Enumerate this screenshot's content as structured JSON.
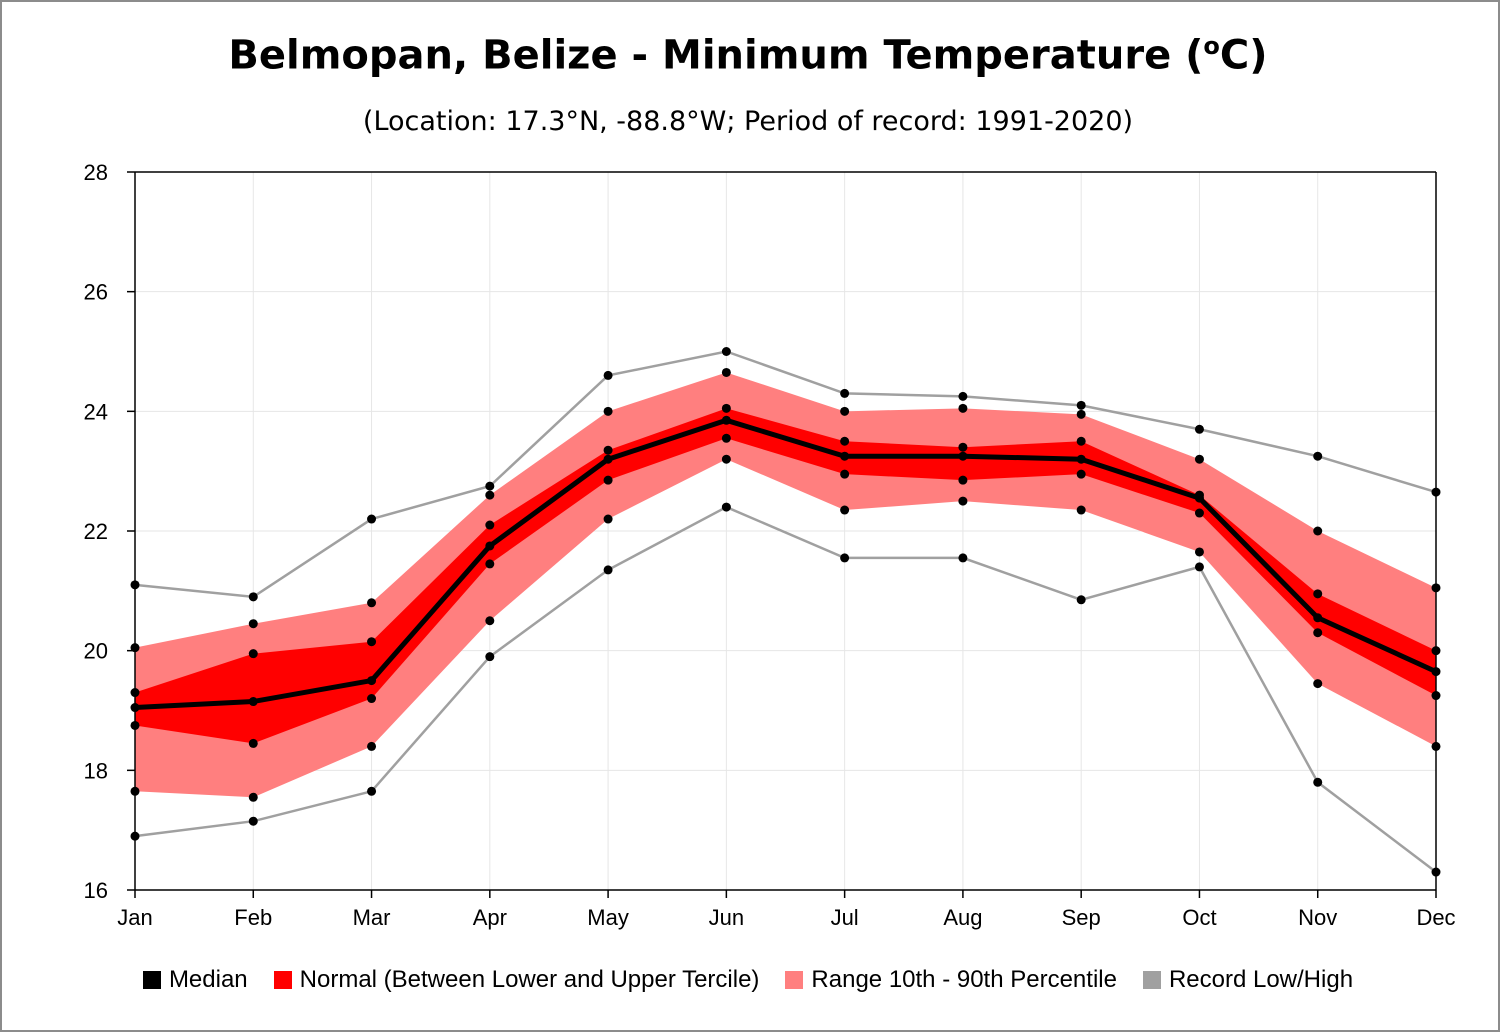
{
  "chart_data": {
    "type": "area",
    "title": "Belmopan, Belize - Minimum Temperature (",
    "title_unit_sup": "o",
    "title_unit_end": "C)",
    "subtitle": "(Location: 17.3°N, -88.8°W; Period of record: 1991-2020)",
    "categories": [
      "Jan",
      "Feb",
      "Mar",
      "Apr",
      "May",
      "Jun",
      "Jul",
      "Aug",
      "Sep",
      "Oct",
      "Nov",
      "Dec"
    ],
    "yticks": [
      "16",
      "18",
      "20",
      "22",
      "24",
      "26",
      "28"
    ],
    "ylim": [
      16,
      28
    ],
    "grid": true,
    "legend_position": "bottom",
    "colors": {
      "median": "#000000",
      "normal": "#ff0000",
      "range": "#ff7f7f",
      "record": "#a0a0a0"
    },
    "series": [
      {
        "name": "Median",
        "values": [
          19.05,
          19.15,
          19.5,
          21.75,
          23.2,
          23.85,
          23.25,
          23.25,
          23.2,
          22.55,
          20.55,
          19.65
        ]
      },
      {
        "name": "Normal (Between Lower and Upper Tercile)",
        "lower": [
          18.75,
          18.45,
          19.2,
          21.45,
          22.85,
          23.55,
          22.95,
          22.85,
          22.95,
          22.3,
          20.3,
          19.25
        ],
        "upper": [
          19.3,
          19.95,
          20.15,
          22.1,
          23.35,
          24.05,
          23.5,
          23.4,
          23.5,
          22.6,
          20.95,
          20.0
        ]
      },
      {
        "name": "Range 10th - 90th Percentile",
        "lower": [
          17.65,
          17.55,
          18.4,
          20.5,
          22.2,
          23.2,
          22.35,
          22.5,
          22.35,
          21.65,
          19.45,
          18.4
        ],
        "upper": [
          20.05,
          20.45,
          20.8,
          22.6,
          24.0,
          24.65,
          24.0,
          24.05,
          23.95,
          23.2,
          22.0,
          21.05
        ]
      },
      {
        "name": "Record Low/High",
        "lower": [
          16.9,
          17.15,
          17.65,
          19.9,
          21.35,
          22.4,
          21.55,
          21.55,
          20.85,
          21.4,
          17.8,
          16.3
        ],
        "upper": [
          21.1,
          20.9,
          22.2,
          22.75,
          24.6,
          25.0,
          24.3,
          24.25,
          24.1,
          23.7,
          23.25,
          22.65
        ]
      }
    ]
  }
}
